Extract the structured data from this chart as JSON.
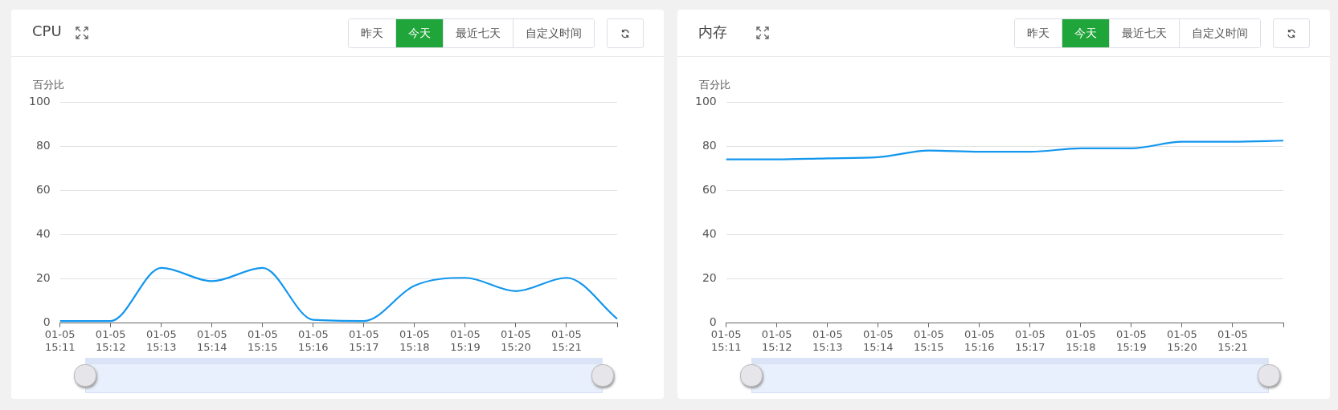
{
  "chart_data": [
    {
      "type": "line",
      "title": "CPU",
      "ylabel": "百分比",
      "categories": [
        "01-05\n15:11",
        "01-05\n15:12",
        "01-05\n15:13",
        "01-05\n15:14",
        "01-05\n15:15",
        "01-05\n15:16",
        "01-05\n15:17",
        "01-05\n15:18",
        "01-05\n15:19",
        "01-05\n15:20",
        "01-05\n15:21",
        null
      ],
      "series": [
        {
          "color": "#1296ee",
          "values": [
            1,
            1,
            25,
            19,
            25,
            1.5,
            1,
            17,
            20.5,
            14.5,
            20.5,
            2
          ]
        }
      ],
      "ylim": [
        0,
        100
      ],
      "yticks": [
        0,
        20,
        40,
        60,
        80,
        100
      ],
      "grid": "y",
      "marker": "none",
      "line_style": "solid",
      "annotations": [
        "昨天",
        "今天",
        "最近七天",
        "自定义时间"
      ]
    },
    {
      "type": "line",
      "title": "内存",
      "ylabel": "百分比",
      "categories": [
        "01-05\n15:11",
        "01-05\n15:12",
        "01-05\n15:13",
        "01-05\n15:14",
        "01-05\n15:15",
        "01-05\n15:16",
        "01-05\n15:17",
        "01-05\n15:18",
        "01-05\n15:19",
        "01-05\n15:20",
        "01-05\n15:21",
        null
      ],
      "series": [
        {
          "color": "#1296ee",
          "values": [
            74,
            74,
            74.5,
            75,
            78,
            77.5,
            77.5,
            79,
            79,
            82,
            82,
            82.5
          ]
        }
      ],
      "ylim": [
        0,
        100
      ],
      "yticks": [
        0,
        20,
        40,
        60,
        80,
        100
      ],
      "grid": "y",
      "marker": "none",
      "line_style": "solid",
      "annotations": [
        "昨天",
        "今天",
        "最近七天",
        "自定义时间"
      ]
    }
  ]
}
